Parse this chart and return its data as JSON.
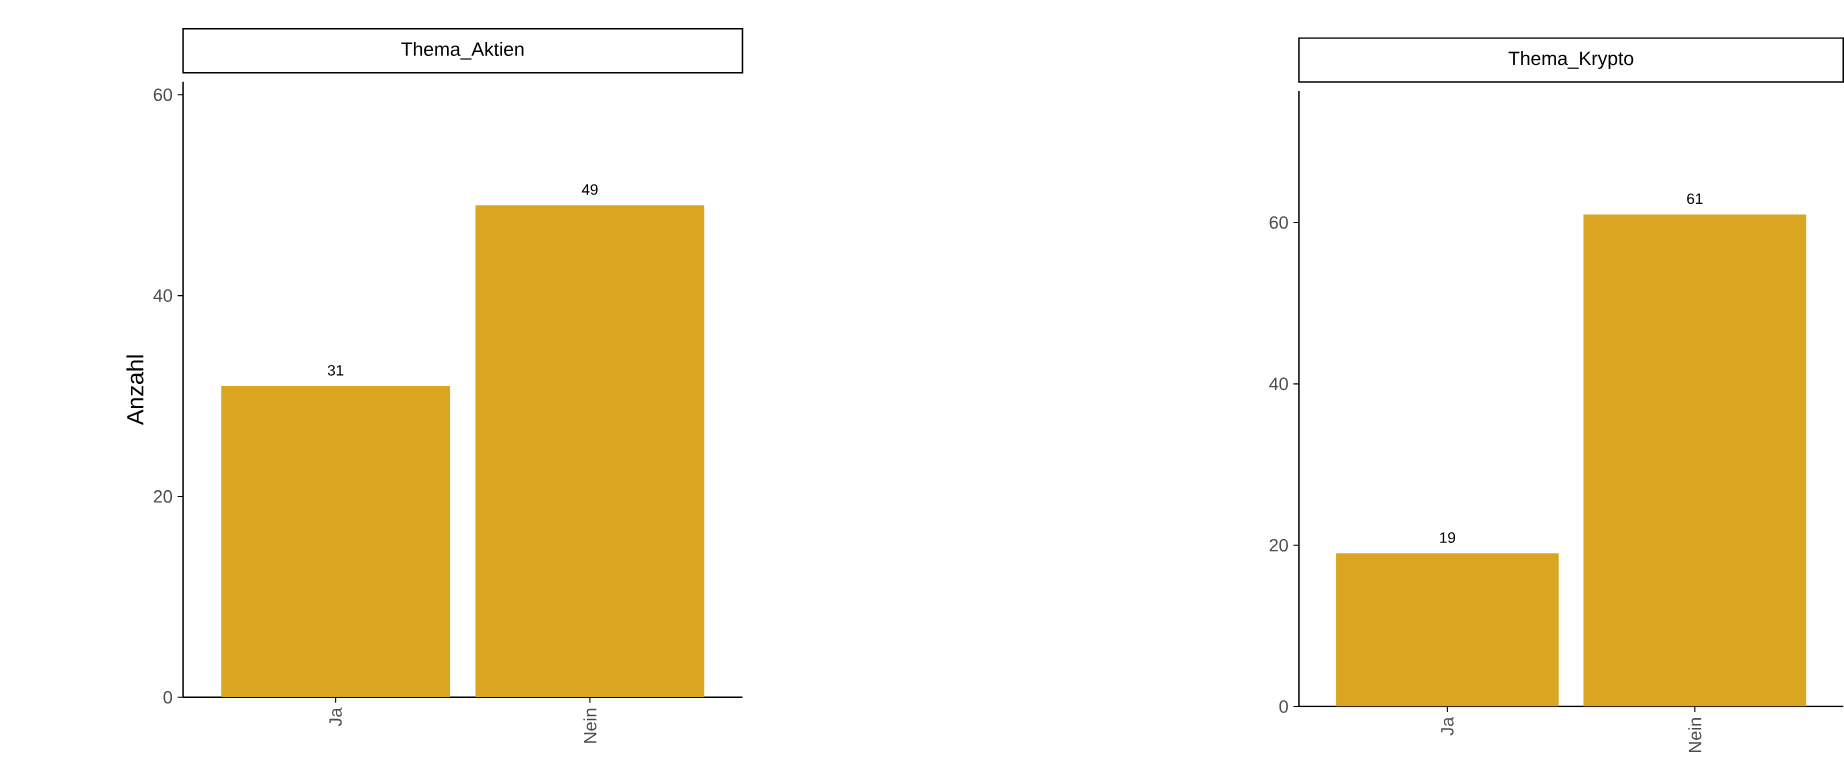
{
  "chart_data": [
    {
      "type": "bar",
      "title": "Thema_Aktien",
      "ylabel": "Anzahl",
      "categories": [
        "Ja",
        "Nein"
      ],
      "values": [
        31,
        49
      ],
      "color": "#daa520",
      "ylim": [
        0,
        61.3
      ],
      "yticks": [
        0,
        20,
        40,
        60
      ],
      "data_labels": true
    },
    {
      "type": "bar",
      "title": "Thema_Krypto",
      "categories": [
        "Ja",
        "Nein"
      ],
      "values": [
        19,
        61
      ],
      "color": "#daa520",
      "ylim": [
        0,
        76.3
      ],
      "yticks": [
        0,
        20,
        40,
        60
      ],
      "data_labels": true
    }
  ]
}
